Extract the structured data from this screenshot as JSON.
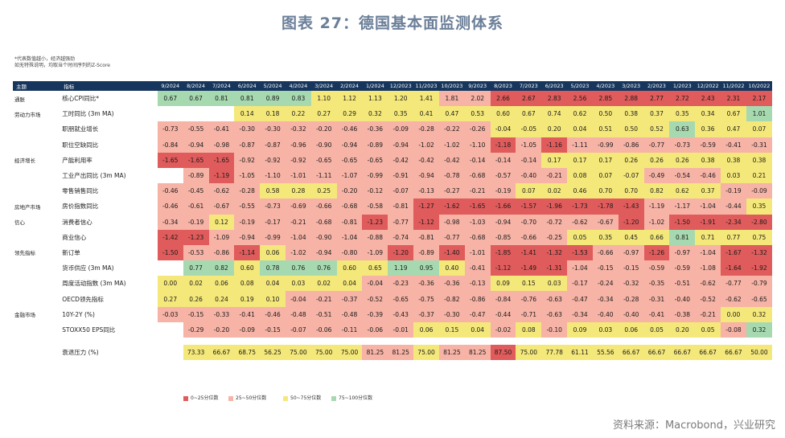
{
  "title": "图表 27：德国基本面监测体系",
  "notes": [
    "*代表数值越小，经济越强劲",
    "如无特殊说明，均取当个时间序列的Z-Score"
  ],
  "source": "资料来源：Macrobond，兴业研究",
  "colors": {
    "header_bg": "#17365d",
    "title": "#6b7f99"
  },
  "legend": [
    {
      "label": "0~25分位数",
      "color": "#e05b5b"
    },
    {
      "label": "25~50分位数",
      "color": "#f6b3a6"
    },
    {
      "label": "50~75分位数",
      "color": "#f5e87a"
    },
    {
      "label": "75~100分位数",
      "color": "#a7d9b0"
    }
  ],
  "chart_data": {
    "type": "table",
    "header": {
      "section": "主题",
      "indicator": "指标"
    },
    "columns": [
      "9/2024",
      "8/2024",
      "7/2024",
      "6/2024",
      "5/2024",
      "4/2024",
      "3/2024",
      "2/2024",
      "1/2024",
      "12/2023",
      "11/2023",
      "10/2023",
      "9/2023",
      "8/2023",
      "7/2023",
      "6/2023",
      "5/2023",
      "4/2023",
      "3/2023",
      "2/2023",
      "1/2023",
      "12/2022",
      "11/2022",
      "10/2022"
    ],
    "rows": [
      {
        "section": "通胀",
        "indicator": "核心CPI同比*",
        "values": [
          "0.67",
          "0.67",
          "0.81",
          "0.81",
          "0.89",
          "0.83",
          "1.10",
          "1.12",
          "1.13",
          "1.20",
          "1.41",
          "1.81",
          "2.02",
          "2.66",
          "2.67",
          "2.83",
          "2.56",
          "2.85",
          "2.88",
          "2.77",
          "2.72",
          "2.43",
          "2.31",
          "2.17"
        ],
        "quartiles": [
          3,
          3,
          3,
          3,
          3,
          3,
          2,
          2,
          2,
          2,
          2,
          1,
          1,
          0,
          0,
          0,
          0,
          0,
          0,
          0,
          0,
          0,
          0,
          0
        ]
      },
      {
        "section": "劳动力市场",
        "indicator": "工时同比 (3m MA)",
        "values": [
          "",
          "",
          "",
          "0.14",
          "0.18",
          "0.22",
          "0.27",
          "0.29",
          "0.32",
          "0.35",
          "0.41",
          "0.47",
          "0.53",
          "0.60",
          "0.67",
          "0.74",
          "0.62",
          "0.50",
          "0.38",
          "0.37",
          "0.35",
          "0.34",
          "0.67",
          "1.01"
        ],
        "quartiles": [
          -1,
          -1,
          -1,
          2,
          2,
          2,
          2,
          2,
          2,
          2,
          2,
          2,
          2,
          2,
          2,
          2,
          2,
          2,
          2,
          2,
          2,
          2,
          2,
          3
        ]
      },
      {
        "section": "",
        "indicator": "职朋就业增长",
        "values": [
          "-0.73",
          "-0.55",
          "-0.41",
          "-0.30",
          "-0.30",
          "-0.32",
          "-0.20",
          "-0.46",
          "-0.36",
          "-0.09",
          "-0.28",
          "-0.22",
          "-0.26",
          "-0.04",
          "-0.05",
          "0.20",
          "0.04",
          "0.51",
          "0.50",
          "0.52",
          "0.63",
          "0.36",
          "0.47",
          "0.07"
        ],
        "quartiles": [
          1,
          1,
          1,
          1,
          1,
          1,
          1,
          1,
          1,
          1,
          1,
          1,
          1,
          2,
          2,
          2,
          2,
          2,
          2,
          2,
          3,
          2,
          2,
          2
        ]
      },
      {
        "section": "",
        "indicator": "职位空缺同比",
        "values": [
          "-0.84",
          "-0.94",
          "-0.98",
          "-0.87",
          "-0.87",
          "-0.96",
          "-0.90",
          "-0.94",
          "-0.89",
          "-0.94",
          "-1.02",
          "-1.02",
          "-1.10",
          "-1.18",
          "-1.05",
          "-1.16",
          "-1.11",
          "-0.99",
          "-0.86",
          "-0.77",
          "-0.73",
          "-0.59",
          "-0.41",
          "-0.31"
        ],
        "quartiles": [
          1,
          1,
          1,
          1,
          1,
          1,
          1,
          1,
          1,
          1,
          1,
          1,
          1,
          0,
          1,
          0,
          1,
          1,
          1,
          1,
          1,
          1,
          1,
          1
        ]
      },
      {
        "section": "经济增长",
        "indicator": "产能利用率",
        "values": [
          "-1.65",
          "-1.65",
          "-1.65",
          "-0.92",
          "-0.92",
          "-0.92",
          "-0.65",
          "-0.65",
          "-0.65",
          "-0.42",
          "-0.42",
          "-0.42",
          "-0.14",
          "-0.14",
          "-0.14",
          "0.17",
          "0.17",
          "0.17",
          "0.26",
          "0.26",
          "0.26",
          "0.38",
          "0.38",
          "0.38"
        ],
        "quartiles": [
          0,
          0,
          0,
          1,
          1,
          1,
          1,
          1,
          1,
          1,
          1,
          1,
          1,
          1,
          1,
          2,
          2,
          2,
          2,
          2,
          2,
          2,
          2,
          2
        ]
      },
      {
        "section": "",
        "indicator": "工业产出同比 (3m MA)",
        "values": [
          "",
          "-0.89",
          "-1.19",
          "-1.05",
          "-1.10",
          "-1.01",
          "-1.11",
          "-1.07",
          "-0.99",
          "-0.91",
          "-0.94",
          "-0.78",
          "-0.68",
          "-0.57",
          "-0.40",
          "-0.21",
          "0.08",
          "0.07",
          "-0.07",
          "-0.49",
          "-0.54",
          "-0.46",
          "0.03",
          "0.21"
        ],
        "quartiles": [
          -1,
          1,
          0,
          1,
          1,
          1,
          1,
          1,
          1,
          1,
          1,
          1,
          1,
          1,
          1,
          1,
          2,
          2,
          2,
          1,
          1,
          1,
          2,
          2
        ]
      },
      {
        "section": "",
        "indicator": "零售销售同比",
        "values": [
          "-0.46",
          "-0.45",
          "-0.62",
          "-0.28",
          "0.58",
          "0.28",
          "0.25",
          "-0.20",
          "-0.12",
          "-0.07",
          "-0.13",
          "-0.27",
          "-0.21",
          "-0.19",
          "0.07",
          "0.02",
          "0.46",
          "0.70",
          "0.70",
          "0.82",
          "0.62",
          "0.37",
          "-0.19",
          "-0.09"
        ],
        "quartiles": [
          1,
          1,
          1,
          1,
          2,
          2,
          2,
          1,
          1,
          1,
          1,
          1,
          1,
          1,
          2,
          2,
          2,
          2,
          2,
          2,
          2,
          2,
          1,
          1
        ]
      },
      {
        "section": "房地产市场",
        "indicator": "房价指数同比",
        "values": [
          "-0.46",
          "-0.61",
          "-0.67",
          "-0.55",
          "-0.73",
          "-0.69",
          "-0.66",
          "-0.68",
          "-0.58",
          "-0.81",
          "-1.27",
          "-1.62",
          "-1.65",
          "-1.66",
          "-1.57",
          "-1.96",
          "-1.73",
          "-1.78",
          "-1.43",
          "-1.19",
          "-1.17",
          "-1.04",
          "-0.44",
          "0.35"
        ],
        "quartiles": [
          1,
          1,
          1,
          1,
          1,
          1,
          1,
          1,
          1,
          1,
          0,
          0,
          0,
          0,
          0,
          0,
          0,
          0,
          0,
          1,
          1,
          1,
          1,
          2
        ]
      },
      {
        "section": "信心",
        "indicator": "消费者信心",
        "values": [
          "-0.34",
          "-0.19",
          "0.12",
          "-0.19",
          "-0.17",
          "-0.21",
          "-0.68",
          "-0.81",
          "-1.23",
          "-0.77",
          "-1.12",
          "-0.98",
          "-1.03",
          "-0.94",
          "-0.70",
          "-0.72",
          "-0.62",
          "-0.67",
          "-1.20",
          "-1.02",
          "-1.50",
          "-1.91",
          "-2.34",
          "-2.80"
        ],
        "quartiles": [
          1,
          1,
          2,
          1,
          1,
          1,
          1,
          1,
          0,
          1,
          0,
          1,
          1,
          1,
          1,
          1,
          1,
          1,
          0,
          1,
          0,
          0,
          0,
          0
        ]
      },
      {
        "section": "",
        "indicator": "商业信心",
        "values": [
          "-1.42",
          "-1.23",
          "-1.09",
          "-0.94",
          "-0.99",
          "-1.04",
          "-0.90",
          "-1.04",
          "-0.88",
          "-0.74",
          "-0.81",
          "-0.77",
          "-0.68",
          "-0.85",
          "-0.66",
          "-0.25",
          "0.05",
          "0.35",
          "0.45",
          "0.66",
          "0.81",
          "0.71",
          "0.77",
          "0.75"
        ],
        "quartiles": [
          0,
          0,
          1,
          1,
          1,
          1,
          1,
          1,
          1,
          1,
          1,
          1,
          1,
          1,
          1,
          1,
          2,
          2,
          2,
          2,
          3,
          2,
          2,
          2
        ]
      },
      {
        "section": "领先指标",
        "indicator": "新订单",
        "values": [
          "-1.50",
          "-0.53",
          "-0.86",
          "-1.14",
          "0.06",
          "-1.02",
          "-0.94",
          "-0.80",
          "-1.09",
          "-1.20",
          "-0.89",
          "-1.40",
          "-1.01",
          "-1.85",
          "-1.41",
          "-1.32",
          "-1.53",
          "-0.66",
          "-0.97",
          "-1.26",
          "-0.97",
          "-1.04",
          "-1.67",
          "-1.32"
        ],
        "quartiles": [
          0,
          1,
          1,
          0,
          2,
          1,
          1,
          1,
          1,
          0,
          1,
          0,
          1,
          0,
          0,
          0,
          0,
          1,
          1,
          0,
          1,
          1,
          0,
          0
        ]
      },
      {
        "section": "",
        "indicator": "货币供应 (3m MA)",
        "values": [
          "",
          "0.77",
          "0.82",
          "0.60",
          "0.78",
          "0.76",
          "0.76",
          "0.60",
          "0.65",
          "1.19",
          "0.95",
          "0.40",
          "-0.41",
          "-1.12",
          "-1.49",
          "-1.31",
          "-1.04",
          "-0.15",
          "-0.15",
          "-0.59",
          "-0.59",
          "-1.08",
          "-1.64",
          "-1.92"
        ],
        "quartiles": [
          -1,
          3,
          3,
          2,
          3,
          3,
          3,
          2,
          2,
          3,
          3,
          2,
          1,
          0,
          0,
          0,
          1,
          1,
          1,
          1,
          1,
          1,
          0,
          0
        ]
      },
      {
        "section": "",
        "indicator": "周度活动指数 (3m MA)",
        "values": [
          "0.00",
          "0.02",
          "0.06",
          "0.08",
          "0.04",
          "0.03",
          "0.02",
          "0.04",
          "-0.04",
          "-0.23",
          "-0.36",
          "-0.36",
          "-0.13",
          "0.09",
          "0.15",
          "0.03",
          "-0.17",
          "-0.24",
          "-0.32",
          "-0.35",
          "-0.51",
          "-0.62",
          "-0.77",
          "-0.79"
        ],
        "quartiles": [
          2,
          2,
          2,
          2,
          2,
          2,
          2,
          2,
          1,
          1,
          1,
          1,
          1,
          2,
          2,
          2,
          1,
          1,
          1,
          1,
          1,
          1,
          1,
          1
        ]
      },
      {
        "section": "",
        "indicator": "OECD领先指标",
        "values": [
          "0.27",
          "0.26",
          "0.24",
          "0.19",
          "0.10",
          "-0.04",
          "-0.21",
          "-0.37",
          "-0.52",
          "-0.65",
          "-0.75",
          "-0.82",
          "-0.86",
          "-0.84",
          "-0.76",
          "-0.63",
          "-0.47",
          "-0.34",
          "-0.28",
          "-0.31",
          "-0.40",
          "-0.52",
          "-0.62",
          "-0.65"
        ],
        "quartiles": [
          2,
          2,
          2,
          2,
          2,
          1,
          1,
          1,
          1,
          1,
          1,
          1,
          1,
          1,
          1,
          1,
          1,
          1,
          1,
          1,
          1,
          1,
          1,
          1
        ]
      },
      {
        "section": "金融市场",
        "indicator": "10Y-2Y (%)",
        "values": [
          "-0.03",
          "-0.15",
          "-0.33",
          "-0.41",
          "-0.46",
          "-0.48",
          "-0.51",
          "-0.48",
          "-0.39",
          "-0.43",
          "-0.37",
          "-0.30",
          "-0.47",
          "-0.44",
          "-0.71",
          "-0.63",
          "-0.34",
          "-0.40",
          "-0.40",
          "-0.41",
          "-0.38",
          "-0.21",
          "0.00",
          "0.32"
        ],
        "quartiles": [
          1,
          1,
          1,
          1,
          1,
          1,
          1,
          1,
          1,
          1,
          1,
          1,
          1,
          1,
          1,
          1,
          1,
          1,
          1,
          1,
          1,
          1,
          2,
          2
        ]
      },
      {
        "section": "",
        "indicator": "STOXX50 EPS同比",
        "values": [
          "",
          "-0.29",
          "-0.20",
          "-0.09",
          "-0.15",
          "-0.07",
          "-0.06",
          "-0.11",
          "-0.06",
          "-0.01",
          "0.06",
          "0.15",
          "0.04",
          "-0.02",
          "0.08",
          "-0.10",
          "0.09",
          "0.03",
          "0.06",
          "0.05",
          "0.20",
          "0.05",
          "-0.08",
          "0.32"
        ],
        "quartiles": [
          -1,
          1,
          1,
          1,
          1,
          1,
          1,
          1,
          1,
          1,
          2,
          2,
          2,
          1,
          2,
          1,
          2,
          2,
          2,
          2,
          2,
          2,
          1,
          3
        ]
      }
    ],
    "pressure": {
      "label": "衰退压力 (%)",
      "values": [
        "",
        "73.33",
        "66.67",
        "68.75",
        "56.25",
        "75.00",
        "75.00",
        "75.00",
        "81.25",
        "81.25",
        "75.00",
        "81.25",
        "81.25",
        "87.50",
        "75.00",
        "77.78",
        "61.11",
        "55.56",
        "66.67",
        "66.67",
        "66.67",
        "66.67",
        "66.67",
        "50.00"
      ],
      "quartiles": [
        -1,
        2,
        2,
        2,
        2,
        2,
        2,
        2,
        1,
        1,
        2,
        1,
        1,
        0,
        2,
        2,
        2,
        2,
        2,
        2,
        2,
        2,
        2,
        2
      ]
    }
  }
}
